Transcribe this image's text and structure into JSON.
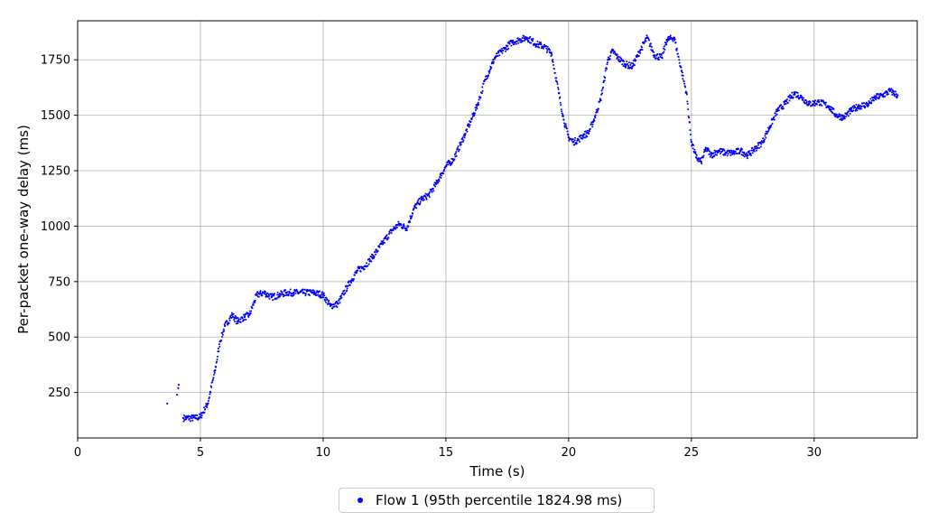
{
  "chart_data": {
    "type": "scatter",
    "xlabel": "Time (s)",
    "ylabel": "Per-packet one-way delay (ms)",
    "xlim": [
      0,
      34.2
    ],
    "ylim": [
      45,
      1926
    ],
    "xticks": [
      0,
      5,
      10,
      15,
      20,
      25,
      30
    ],
    "yticks": [
      250,
      500,
      750,
      1000,
      1250,
      1500,
      1750
    ],
    "grid": true,
    "legend_position": "bottom-center",
    "series": [
      {
        "name": "Flow 1 (95th percentile 1824.98 ms)",
        "color": "#0000ff",
        "marker": "dot",
        "isolated_points": [
          [
            3.65,
            200
          ],
          [
            4.05,
            240
          ],
          [
            4.1,
            270
          ],
          [
            4.12,
            285
          ]
        ],
        "x": [
          4.3,
          4.8,
          5.0,
          5.3,
          5.6,
          5.8,
          6.0,
          6.3,
          6.5,
          6.8,
          7.0,
          7.3,
          7.6,
          7.9,
          8.2,
          8.5,
          8.8,
          9.2,
          9.6,
          10.0,
          10.3,
          10.6,
          11.0,
          11.4,
          11.7,
          12.0,
          12.4,
          12.8,
          13.1,
          13.4,
          13.7,
          14.0,
          14.3,
          14.6,
          15.0,
          15.3,
          15.6,
          16.0,
          16.3,
          16.6,
          17.0,
          17.4,
          17.7,
          18.0,
          18.3,
          18.7,
          19.0,
          19.3,
          19.6,
          19.8,
          20.0,
          20.2,
          20.4,
          20.6,
          20.8,
          21.0,
          21.3,
          21.6,
          21.8,
          22.0,
          22.3,
          22.6,
          22.9,
          23.2,
          23.5,
          23.8,
          24.0,
          24.3,
          24.6,
          24.8,
          25.0,
          25.2,
          25.4,
          25.6,
          25.8,
          26.1,
          26.4,
          26.7,
          27.0,
          27.3,
          27.6,
          27.9,
          28.2,
          28.5,
          28.8,
          29.2,
          29.5,
          29.8,
          30.2,
          30.6,
          30.9,
          31.2,
          31.5,
          31.8,
          32.2,
          32.5,
          32.8,
          33.1,
          33.4
        ],
        "y": [
          135,
          135,
          140,
          200,
          350,
          480,
          550,
          600,
          570,
          590,
          600,
          690,
          700,
          680,
          690,
          700,
          700,
          700,
          700,
          690,
          640,
          650,
          730,
          800,
          820,
          860,
          920,
          980,
          1010,
          990,
          1080,
          1120,
          1140,
          1190,
          1270,
          1300,
          1370,
          1470,
          1550,
          1660,
          1760,
          1800,
          1830,
          1840,
          1850,
          1820,
          1810,
          1780,
          1600,
          1480,
          1400,
          1380,
          1390,
          1410,
          1420,
          1470,
          1570,
          1750,
          1790,
          1760,
          1730,
          1720,
          1790,
          1850,
          1770,
          1760,
          1840,
          1850,
          1700,
          1600,
          1380,
          1310,
          1290,
          1350,
          1320,
          1340,
          1330,
          1330,
          1340,
          1320,
          1350,
          1380,
          1450,
          1520,
          1550,
          1600,
          1580,
          1550,
          1560,
          1540,
          1500,
          1490,
          1520,
          1540,
          1550,
          1580,
          1590,
          1610,
          1590
        ]
      }
    ]
  }
}
